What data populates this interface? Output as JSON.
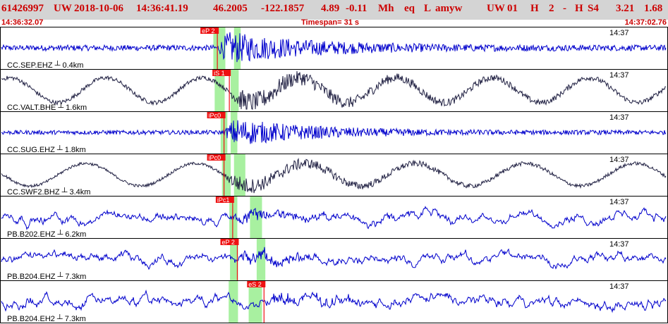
{
  "header": {
    "event_id": "61426997",
    "network": "UW",
    "date": "2018-10-06",
    "time": "14:36:41.19",
    "latitude": "46.2005",
    "longitude": "-122.1857",
    "depth": "4.89",
    "magnitude": "-0.11",
    "mag_type": "Mh",
    "event_type": "eq",
    "locator": "L",
    "author": "amyw",
    "net_code": "UW",
    "version": "01",
    "flag_h": "H",
    "flag_num": "2",
    "flag_dash": "-",
    "flag_h2": "H",
    "flag_s": "S4",
    "rms": "3.21",
    "erh": "1.68"
  },
  "timebar": {
    "start_time": "14:36:32.07",
    "span_label": "Timespan=  31 s",
    "end_time": "14:37:02.76"
  },
  "colors": {
    "trace_blue": "#0000cc",
    "trace_black": "#222244",
    "pick_red": "#ee1111",
    "window_green": "#a8f0a0",
    "header_red": "#cc0000"
  },
  "panels": [
    {
      "label": "CC.SEP.EHZ",
      "dist": "0.4km",
      "time_label": "14:37",
      "color": "#0000cc",
      "type": "hf",
      "amp": 4,
      "env": 22,
      "onset": 0.325,
      "decay": 0.13,
      "green": [
        [
          0.319,
          0.337
        ],
        [
          0.35,
          0.36
        ]
      ],
      "picks": [
        {
          "label": "eP 2",
          "t": 0.325
        }
      ]
    },
    {
      "label": "CC.VALT.BHE",
      "dist": "1.6km",
      "time_label": "14:37",
      "color": "#222244",
      "type": "lf",
      "amp": 3,
      "env": 14,
      "lf_amp": 22,
      "lf_period": 0.145,
      "onset": 0.343,
      "decay": 0.18,
      "green": [
        [
          0.321,
          0.336
        ],
        [
          0.345,
          0.357
        ]
      ],
      "picks": [
        {
          "label": "iS 1",
          "t": 0.343
        }
      ]
    },
    {
      "label": "CC.SUG.EHZ",
      "dist": "1.8km",
      "time_label": "14:37",
      "color": "#0000cc",
      "type": "hf",
      "amp": 3,
      "env": 20,
      "onset": 0.335,
      "decay": 0.12,
      "green": [
        [
          0.33,
          0.34
        ],
        [
          0.345,
          0.355
        ]
      ],
      "picks": [
        {
          "label": "iPc0",
          "t": 0.335
        }
      ]
    },
    {
      "label": "CC.SWF2.BHZ",
      "dist": "3.4km",
      "time_label": "14:37",
      "color": "#222244",
      "type": "lf",
      "amp": 2,
      "env": 11,
      "lf_amp": 20,
      "lf_period": 0.165,
      "onset": 0.335,
      "decay": 0.17,
      "green": [
        [
          0.332,
          0.345
        ],
        [
          0.35,
          0.367
        ]
      ],
      "picks": [
        {
          "label": "iPc0",
          "t": 0.335
        }
      ]
    },
    {
      "label": "PB.B202.EHZ",
      "dist": "6.2km",
      "time_label": "14:37",
      "color": "#0000cc",
      "type": "noisy",
      "amp": 11,
      "env": 9,
      "onset": 0.348,
      "decay": 0.1,
      "green": [
        [
          0.343,
          0.355
        ],
        [
          0.374,
          0.392
        ]
      ],
      "picks": [
        {
          "label": "iPc1",
          "t": 0.348
        }
      ]
    },
    {
      "label": "PB.B204.EHZ",
      "dist": "7.3km",
      "time_label": "14:37",
      "color": "#0000cc",
      "type": "noisy",
      "amp": 11,
      "env": 9,
      "onset": 0.355,
      "decay": 0.1,
      "green": [
        [
          0.344,
          0.356
        ],
        [
          0.384,
          0.397
        ]
      ],
      "picks": [
        {
          "label": "eP 2",
          "t": 0.355
        }
      ]
    },
    {
      "label": "PB.B204.EH2",
      "dist": "7.3km",
      "time_label": "14:37",
      "color": "#0000cc",
      "type": "noisy",
      "amp": 12,
      "env": 9,
      "onset": 0.395,
      "decay": 0.1,
      "green": [
        [
          0.342,
          0.356
        ],
        [
          0.372,
          0.392
        ]
      ],
      "picks": [
        {
          "label": "eS 2",
          "t": 0.395
        }
      ]
    }
  ]
}
